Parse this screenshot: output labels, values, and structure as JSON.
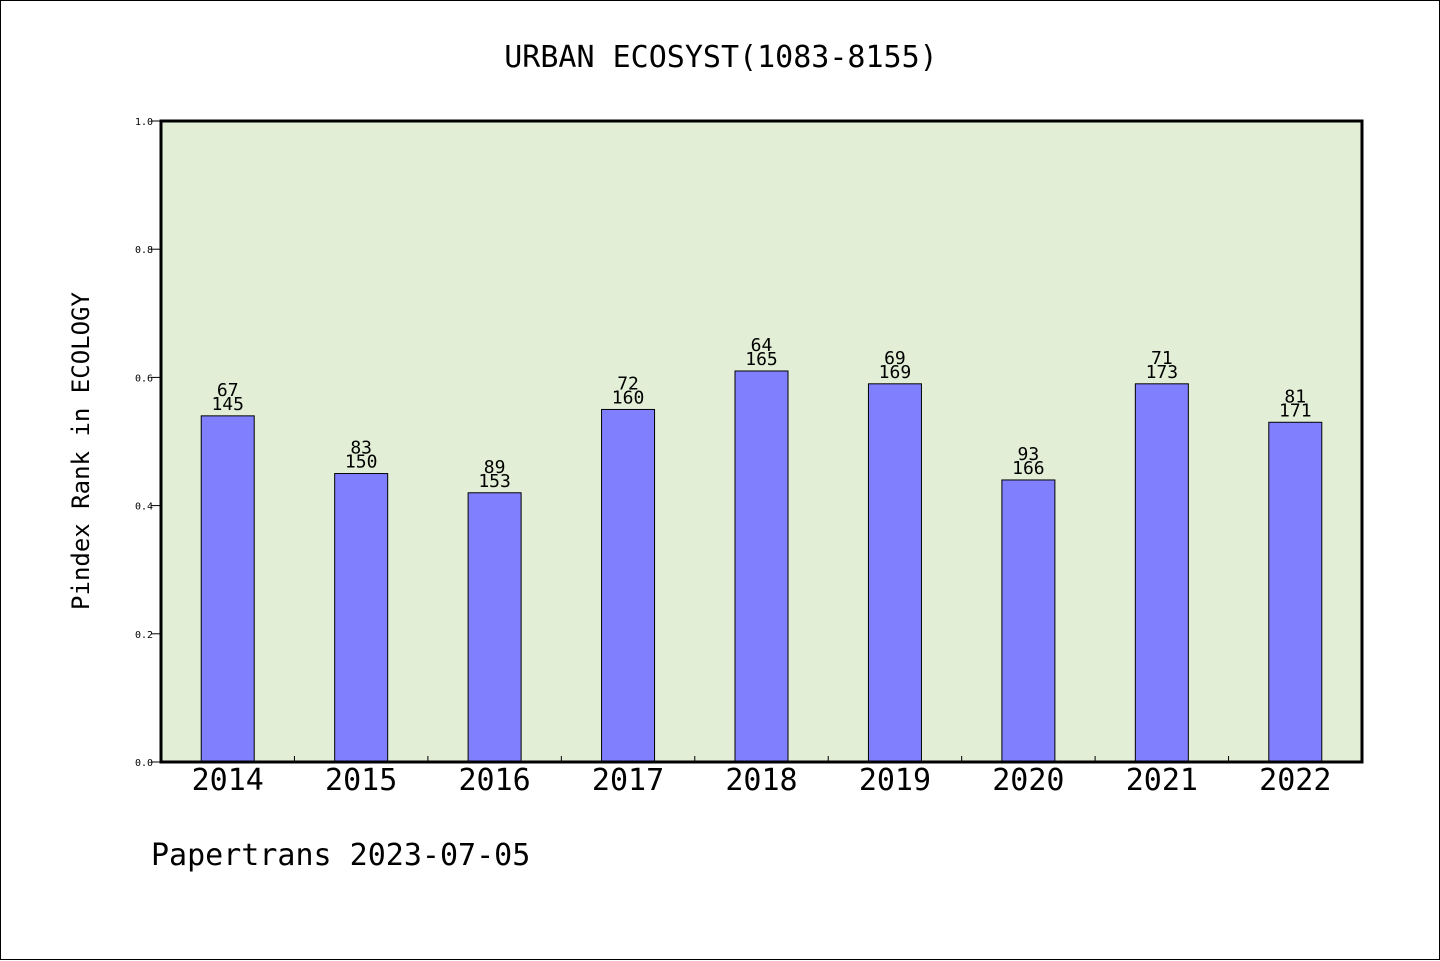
{
  "chart_data": {
    "type": "bar",
    "title": "URBAN ECOSYST(1083-8155)",
    "ylabel": "Pindex Rank in ECOLOGY",
    "xlabel": "",
    "ylim": [
      0.0,
      1.0
    ],
    "yticks": [
      "0.0",
      "0.2",
      "0.4",
      "0.6",
      "0.8",
      "1.0"
    ],
    "categories": [
      "2014",
      "2015",
      "2016",
      "2017",
      "2018",
      "2019",
      "2020",
      "2021",
      "2022"
    ],
    "values": [
      0.54,
      0.45,
      0.42,
      0.55,
      0.61,
      0.59,
      0.44,
      0.59,
      0.53
    ],
    "label_top": [
      "67",
      "83",
      "89",
      "72",
      "64",
      "69",
      "93",
      "71",
      "81"
    ],
    "label_bottom": [
      "145",
      "150",
      "153",
      "160",
      "165",
      "169",
      "166",
      "173",
      "171"
    ],
    "bar_color": "#8080ff",
    "plot_background": "#e2efd6",
    "grid": false,
    "legend": "none"
  },
  "footer": {
    "text": "Papertrans 2023-07-05"
  }
}
